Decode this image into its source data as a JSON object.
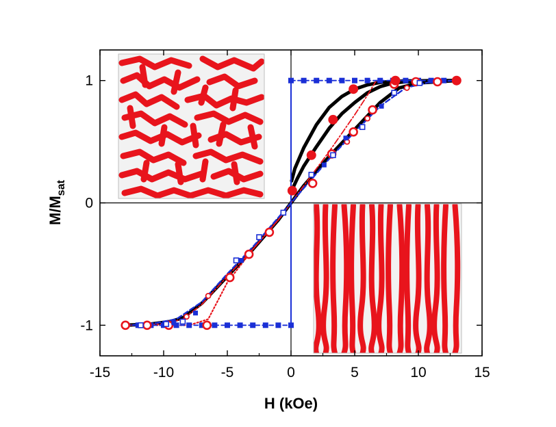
{
  "chart_data": {
    "type": "line",
    "title": "",
    "xlabel": "H (kOe)",
    "ylabel": {
      "main": "M/M",
      "subscript": "sat"
    },
    "xlim": [
      -15,
      15
    ],
    "ylim": [
      -1.25,
      1.25
    ],
    "xticks": [
      -15,
      -10,
      -5,
      0,
      5,
      10,
      15
    ],
    "xtick_labels": [
      "-15",
      "-10",
      "-5",
      "0",
      "5",
      "10",
      "15"
    ],
    "yticks": [
      -1,
      0,
      1
    ],
    "ytick_labels": [
      "-1",
      "0",
      "1"
    ],
    "grid": false,
    "legend": "none",
    "reference_lines": {
      "x": 0,
      "y": 0
    },
    "colors": {
      "black": "#000000",
      "red": "#e8141c",
      "blue": "#1a2fd6",
      "domain_light": "#f2f2f2"
    },
    "series": [
      {
        "style": "black-thick",
        "x": [
          -13,
          -11,
          -9.5,
          -8.5,
          -7,
          -5,
          -3,
          -1,
          0,
          1,
          3,
          5,
          7,
          8.5,
          10,
          13
        ],
        "y": [
          -1,
          -0.99,
          -0.97,
          -0.94,
          -0.82,
          -0.6,
          -0.38,
          -0.14,
          0,
          0.14,
          0.38,
          0.6,
          0.82,
          0.94,
          0.98,
          1.0
        ]
      },
      {
        "style": "black-thick",
        "x": [
          0.05,
          0.3,
          1,
          2,
          3,
          4,
          5,
          6,
          7,
          8,
          9,
          10,
          11,
          13
        ],
        "y": [
          0.18,
          0.28,
          0.45,
          0.64,
          0.78,
          0.87,
          0.93,
          0.965,
          0.985,
          0.993,
          0.997,
          0.998,
          0.999,
          1.0
        ]
      },
      {
        "style": "black-thick",
        "x": [
          0.05,
          0.5,
          1,
          2,
          3,
          4,
          5,
          6,
          7,
          8,
          9,
          10,
          11,
          13
        ],
        "y": [
          0.1,
          0.2,
          0.3,
          0.46,
          0.61,
          0.73,
          0.82,
          0.9,
          0.95,
          0.98,
          0.99,
          0.995,
          0.998,
          1.0
        ]
      },
      {
        "style": "red-dash-dot",
        "x": [
          -13,
          -10,
          -8.5,
          -7,
          -5,
          -3,
          -1,
          0,
          1,
          2,
          3,
          4,
          5,
          6,
          6.7
        ],
        "y": [
          -1,
          -0.99,
          -0.95,
          -0.83,
          -0.6,
          -0.38,
          -0.14,
          0,
          0.14,
          0.28,
          0.42,
          0.57,
          0.72,
          0.88,
          1.0
        ]
      },
      {
        "style": "red-dotted",
        "x": [
          -13,
          -10,
          -8,
          -6.5,
          -5,
          -3,
          -1,
          0
        ],
        "y": [
          -1,
          -1,
          -1,
          -0.95,
          -0.65,
          -0.38,
          -0.14,
          0
        ]
      },
      {
        "style": "blue-dash-marker",
        "x": [
          -13,
          -12,
          -11,
          -10,
          -9,
          -8,
          -7,
          -6,
          -5,
          -4,
          -3,
          -2,
          -1,
          0
        ],
        "y": [
          -1,
          -1,
          -1,
          -1,
          -1,
          -1,
          -1,
          -1,
          -1,
          -1,
          -1,
          -1,
          -1,
          -1
        ]
      },
      {
        "style": "blue-dash-marker",
        "x": [
          0,
          1,
          2,
          3,
          4,
          5,
          6,
          7,
          8,
          9,
          10,
          11,
          12,
          13
        ],
        "y": [
          1,
          1,
          1,
          1,
          1,
          1,
          1,
          1,
          1,
          1,
          1,
          1,
          1,
          1
        ]
      },
      {
        "style": "blue-vertical",
        "x": [
          0,
          0
        ],
        "y": [
          -1,
          1
        ]
      },
      {
        "style": "blue-dash",
        "x": [
          -13,
          -11,
          -9,
          -7,
          -5,
          -3,
          -1,
          0,
          1,
          3,
          5,
          7,
          9,
          11,
          13
        ],
        "y": [
          -1,
          -0.99,
          -0.95,
          -0.81,
          -0.58,
          -0.36,
          -0.12,
          0,
          0.12,
          0.36,
          0.58,
          0.79,
          0.94,
          0.99,
          1.0
        ]
      }
    ],
    "markers": [
      {
        "style": "red-open-circle",
        "points": [
          [
            -13,
            -1
          ],
          [
            -11.3,
            -1
          ],
          [
            -9.6,
            -1
          ],
          [
            -6.6,
            -1
          ],
          [
            -4.8,
            -0.61
          ],
          [
            -3.3,
            -0.42
          ],
          [
            -1.7,
            -0.24
          ],
          [
            1.7,
            0.16
          ],
          [
            3.2,
            0.4
          ],
          [
            4.9,
            0.58
          ],
          [
            6.4,
            0.76
          ],
          [
            8.1,
            0.97
          ],
          [
            9.8,
            0.99
          ],
          [
            11.5,
            0.99
          ]
        ]
      },
      {
        "style": "red-filled-circle",
        "points": [
          [
            0.1,
            0.1
          ],
          [
            1.6,
            0.39
          ],
          [
            3.3,
            0.68
          ],
          [
            4.9,
            0.93
          ],
          [
            8.2,
            1.0
          ],
          [
            13,
            1.0
          ]
        ]
      },
      {
        "style": "red-open-circle-small",
        "points": [
          [
            -8.2,
            -0.93
          ],
          [
            -6.5,
            -0.76
          ],
          [
            4.4,
            0.5
          ],
          [
            6.0,
            0.69
          ],
          [
            9.1,
            0.94
          ]
        ]
      },
      {
        "style": "blue-open-square",
        "points": [
          [
            -11.8,
            -1
          ],
          [
            -9.8,
            -0.99
          ],
          [
            -8.5,
            -0.97
          ],
          [
            -4.3,
            -0.47
          ],
          [
            -2.5,
            -0.28
          ],
          [
            -0.6,
            -0.08
          ],
          [
            1.6,
            0.23
          ],
          [
            3.3,
            0.39
          ],
          [
            5.6,
            0.62
          ],
          [
            8.1,
            0.9
          ],
          [
            10.1,
            0.98
          ]
        ]
      },
      {
        "style": "blue-filled-square",
        "points": [
          [
            -9.2,
            -0.98
          ],
          [
            -7.5,
            -0.9
          ],
          [
            -3.9,
            -0.47
          ],
          [
            2.6,
            0.31
          ],
          [
            4.3,
            0.53
          ],
          [
            7.1,
            0.79
          ]
        ]
      }
    ],
    "insets": [
      {
        "position": "top-left",
        "pattern": "labyrinth",
        "colors": [
          "#e8141c",
          "#f2f2f2"
        ]
      },
      {
        "position": "bottom-right",
        "pattern": "stripes",
        "colors": [
          "#e8141c",
          "#f2f2f2"
        ]
      }
    ]
  }
}
